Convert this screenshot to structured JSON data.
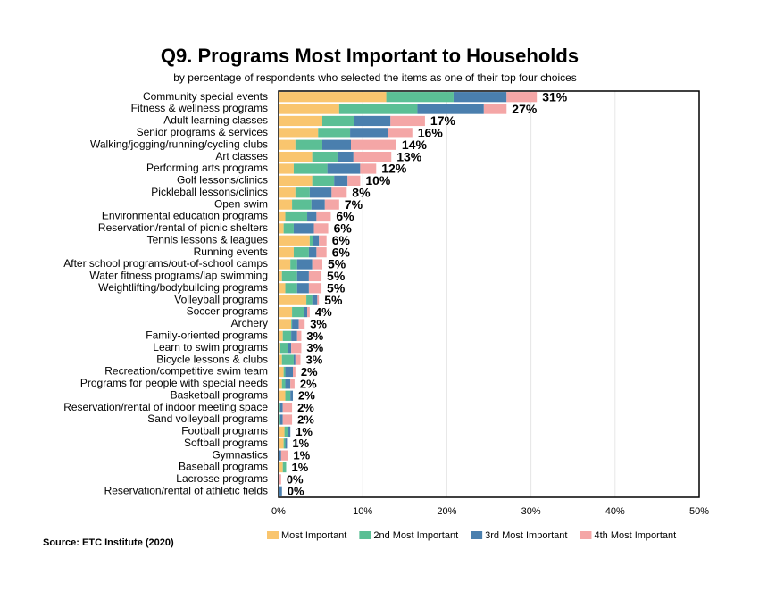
{
  "chart_data": {
    "type": "stacked_bar_horizontal",
    "title": "Q9. Programs Most Important to Households",
    "subtitle": "by percentage of respondents who selected the items as one of their top four choices",
    "source": "Source:  ETC Institute (2020)",
    "categories": [
      "Community special events",
      "Fitness & wellness programs",
      "Adult learning classes",
      "Senior programs & services",
      "Walking/jogging/running/cycling clubs",
      "Art classes",
      "Performing arts programs",
      "Golf lessons/clinics",
      "Pickleball lessons/clinics",
      "Open swim",
      "Environmental education programs",
      "Reservation/rental of picnic shelters",
      "Tennis lessons & leagues",
      "Running events",
      "After school programs/out-of-school camps",
      "Water fitness programs/lap swimming",
      "Weightlifting/bodybuilding programs",
      "Volleyball programs",
      "Soccer programs",
      "Archery",
      "Family-oriented programs",
      "Learn to swim programs",
      "Bicycle lessons & clubs",
      "Recreation/competitive swim team",
      "Programs for people with special needs",
      "Basketball programs",
      "Reservation/rental of indoor meeting space",
      "Sand volleyball programs",
      "Football programs",
      "Softball programs",
      "Gymnastics",
      "Baseball programs",
      "Lacrosse programs",
      "Reservation/rental of athletic fields"
    ],
    "series": [
      {
        "name": "Most Important",
        "color": "#f9c56e",
        "values": [
          12.8,
          7.2,
          5.2,
          4.7,
          2.0,
          4.0,
          1.8,
          4.0,
          2.0,
          1.6,
          0.8,
          0.6,
          3.7,
          1.8,
          1.4,
          0.4,
          0.8,
          3.3,
          1.6,
          1.5,
          0.5,
          0.2,
          0.4,
          0.6,
          0.4,
          0.8,
          0.1,
          0.1,
          0.7,
          0.6,
          0.1,
          0.5,
          0,
          0.1
        ]
      },
      {
        "name": "2nd Most Important",
        "color": "#5bbf95",
        "values": [
          8.0,
          9.3,
          3.8,
          3.8,
          3.2,
          3.0,
          4.0,
          2.6,
          1.7,
          2.3,
          2.6,
          1.2,
          0.4,
          1.8,
          0.8,
          1.8,
          1.4,
          0.7,
          1.4,
          0.1,
          1.0,
          0.9,
          1.4,
          0.2,
          0.4,
          0.6,
          0.1,
          0.1,
          0.4,
          0.2,
          0,
          0.4,
          0,
          0
        ]
      },
      {
        "name": "3rd Most Important",
        "color": "#4a7fae",
        "values": [
          6.3,
          7.9,
          4.3,
          4.5,
          3.4,
          1.9,
          3.9,
          1.6,
          2.6,
          1.6,
          1.1,
          2.4,
          0.7,
          0.9,
          1.8,
          1.4,
          1.4,
          0.6,
          0.4,
          0.8,
          0.7,
          0.4,
          0.2,
          0.9,
          0.6,
          0.3,
          0.3,
          0.3,
          0.3,
          0.2,
          0.2,
          0,
          0.1,
          0.3
        ]
      },
      {
        "name": "4th Most Important",
        "color": "#f4a6a6",
        "values": [
          3.6,
          2.7,
          4.1,
          2.9,
          5.4,
          4.5,
          1.9,
          1.5,
          1.8,
          1.7,
          1.7,
          1.7,
          0.9,
          1.2,
          1.2,
          1.5,
          1.5,
          0.2,
          0.3,
          0.7,
          0.5,
          1.2,
          0.6,
          0.3,
          0.5,
          0,
          1.1,
          1.1,
          0,
          0,
          0.8,
          0,
          0.2,
          0
        ]
      }
    ],
    "total_labels": [
      "31%",
      "27%",
      "17%",
      "16%",
      "14%",
      "13%",
      "12%",
      "10%",
      "8%",
      "7%",
      "6%",
      "6%",
      "6%",
      "6%",
      "5%",
      "5%",
      "5%",
      "5%",
      "4%",
      "3%",
      "3%",
      "3%",
      "3%",
      "2%",
      "2%",
      "2%",
      "2%",
      "2%",
      "1%",
      "1%",
      "1%",
      "1%",
      "0%",
      "0%"
    ],
    "xlim": [
      0,
      50
    ],
    "xticks": [
      {
        "value": 0,
        "label": "0%"
      },
      {
        "value": 10,
        "label": "10%"
      },
      {
        "value": 20,
        "label": "20%"
      },
      {
        "value": 30,
        "label": "30%"
      },
      {
        "value": 40,
        "label": "40%"
      },
      {
        "value": 50,
        "label": "50%"
      }
    ],
    "grid": true,
    "legend": "bottom"
  }
}
